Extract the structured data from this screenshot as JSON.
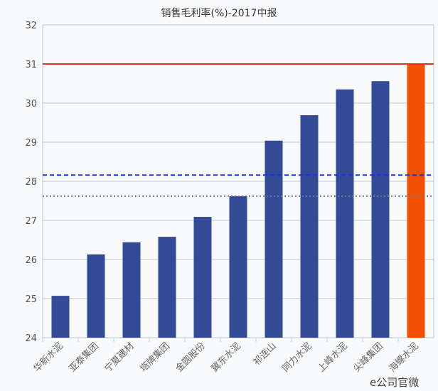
{
  "chart_data": {
    "type": "bar",
    "title": "销售毛利率(%)-2017中报",
    "xlabel": "",
    "ylabel": "",
    "ylim": [
      24,
      32
    ],
    "yticks": [
      "24",
      "25",
      "26",
      "27",
      "28",
      "29",
      "30",
      "31",
      "32"
    ],
    "categories": [
      "华新水泥",
      "亚泰集团",
      "宁夏建材",
      "塔牌集团",
      "金圆股份",
      "冀东水泥",
      "祁连山",
      "同力水泥",
      "上峰水泥",
      "尖峰集团",
      "海螺水泥"
    ],
    "values": [
      25.07,
      26.13,
      26.44,
      26.58,
      27.09,
      27.62,
      29.04,
      29.69,
      30.35,
      30.56,
      31.0
    ],
    "highlight_index": 10,
    "reference_lines": [
      {
        "value": 31.0,
        "style": "solid",
        "color": "#e8341c"
      },
      {
        "value": 28.16,
        "style": "dashed",
        "color": "#1533e0"
      },
      {
        "value": 27.62,
        "style": "dotted",
        "color": "#707a88"
      }
    ],
    "colors": {
      "bar": "#334a96",
      "highlight": "#f05000"
    },
    "grid": true
  },
  "watermark": "e公司官微"
}
